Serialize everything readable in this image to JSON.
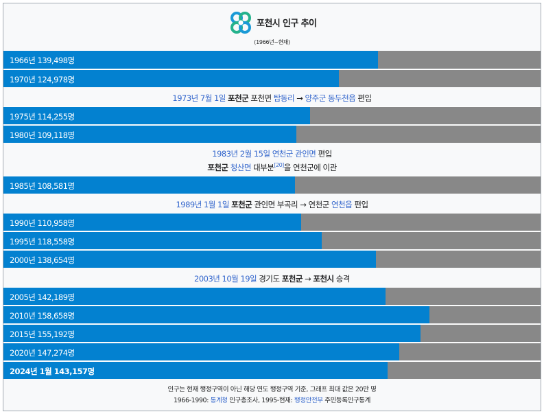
{
  "colors": {
    "fill": "#0381d0",
    "track": "#888888",
    "link": "#3366cc",
    "background": "#f8f9fa"
  },
  "icons": {
    "logo": "pocheon-clover-logo-icon"
  },
  "chart_data": {
    "type": "bar",
    "orientation": "horizontal",
    "title": "포천시 인구 추이",
    "subtitle": "(1966년~현재)",
    "xlim": [
      0,
      200000
    ],
    "series": [
      {
        "year": 1966,
        "value": 139498,
        "label": "1966년 139,498명",
        "bold": false
      },
      {
        "year": 1970,
        "value": 124978,
        "label": "1970년 124,978명",
        "bold": false
      },
      {
        "year": 1975,
        "value": 114255,
        "label": "1975년 114,255명",
        "bold": false
      },
      {
        "year": 1980,
        "value": 109118,
        "label": "1980년 109,118명",
        "bold": false
      },
      {
        "year": 1985,
        "value": 108581,
        "label": "1985년 108,581명",
        "bold": false
      },
      {
        "year": 1990,
        "value": 110958,
        "label": "1990년 110,958명",
        "bold": false
      },
      {
        "year": 1995,
        "value": 118558,
        "label": "1995년 118,558명",
        "bold": false
      },
      {
        "year": 2000,
        "value": 138654,
        "label": "2000년 138,654명",
        "bold": false
      },
      {
        "year": 2005,
        "value": 142189,
        "label": "2005년 142,189명",
        "bold": false
      },
      {
        "year": 2010,
        "value": 158658,
        "label": "2010년 158,658명",
        "bold": false
      },
      {
        "year": 2015,
        "value": 155192,
        "label": "2015년 155,192명",
        "bold": false
      },
      {
        "year": 2020,
        "value": 147274,
        "label": "2020년 147,274명",
        "bold": false
      },
      {
        "year": 2024,
        "value": 143157,
        "label": "2024년 1월 143,157명",
        "bold": true
      }
    ],
    "annotations": [
      {
        "after_index": 1,
        "lines": [
          [
            {
              "text": "1973년 7월 1일",
              "style": "link"
            },
            {
              "text": " ",
              "style": "plain"
            },
            {
              "text": "포천군",
              "style": "bold"
            },
            {
              "text": " 포천면 ",
              "style": "plain"
            },
            {
              "text": "탑동리",
              "style": "link"
            },
            {
              "text": " → ",
              "style": "plain"
            },
            {
              "text": "양주군",
              "style": "link"
            },
            {
              "text": " ",
              "style": "plain"
            },
            {
              "text": "동두천읍",
              "style": "link"
            },
            {
              "text": " 편입",
              "style": "plain"
            }
          ]
        ]
      },
      {
        "after_index": 3,
        "lines": [
          [
            {
              "text": "1983년 2월 15일",
              "style": "link"
            },
            {
              "text": " ",
              "style": "plain"
            },
            {
              "text": "연천군",
              "style": "link"
            },
            {
              "text": " ",
              "style": "plain"
            },
            {
              "text": "관인면",
              "style": "link"
            },
            {
              "text": " 편입",
              "style": "plain"
            }
          ],
          [
            {
              "text": "포천군",
              "style": "bold"
            },
            {
              "text": " ",
              "style": "plain"
            },
            {
              "text": "청산면",
              "style": "link"
            },
            {
              "text": " 대부분",
              "style": "plain"
            },
            {
              "text": "[20]",
              "style": "sup"
            },
            {
              "text": "을 연천군에 이관",
              "style": "plain"
            }
          ]
        ]
      },
      {
        "after_index": 4,
        "lines": [
          [
            {
              "text": "1989년 1월 1일",
              "style": "link"
            },
            {
              "text": " ",
              "style": "plain"
            },
            {
              "text": "포천군",
              "style": "bold"
            },
            {
              "text": " 관인면 부곡리 → 연천군 ",
              "style": "plain"
            },
            {
              "text": "연천읍",
              "style": "link"
            },
            {
              "text": " 편입",
              "style": "plain"
            }
          ]
        ]
      },
      {
        "after_index": 7,
        "lines": [
          [
            {
              "text": "2003년 10월 19일",
              "style": "link"
            },
            {
              "text": " 경기도 ",
              "style": "plain"
            },
            {
              "text": "포천군",
              "style": "bold"
            },
            {
              "text": " → ",
              "style": "plain"
            },
            {
              "text": "포천시",
              "style": "bold"
            },
            {
              "text": " 승격",
              "style": "plain"
            }
          ]
        ]
      }
    ],
    "footnotes": [
      [
        {
          "text": "인구는 현재 행정구역이 아닌 해당 연도 행정구역 기준, 그래프 최대 값은 20만 명",
          "style": "plain"
        }
      ],
      [
        {
          "text": "1966-1990: ",
          "style": "plain"
        },
        {
          "text": "통계청",
          "style": "link"
        },
        {
          "text": " 인구총조사, 1995-현재: ",
          "style": "plain"
        },
        {
          "text": "행정안전부",
          "style": "link"
        },
        {
          "text": " 주민등록인구통계",
          "style": "plain"
        }
      ]
    ]
  }
}
